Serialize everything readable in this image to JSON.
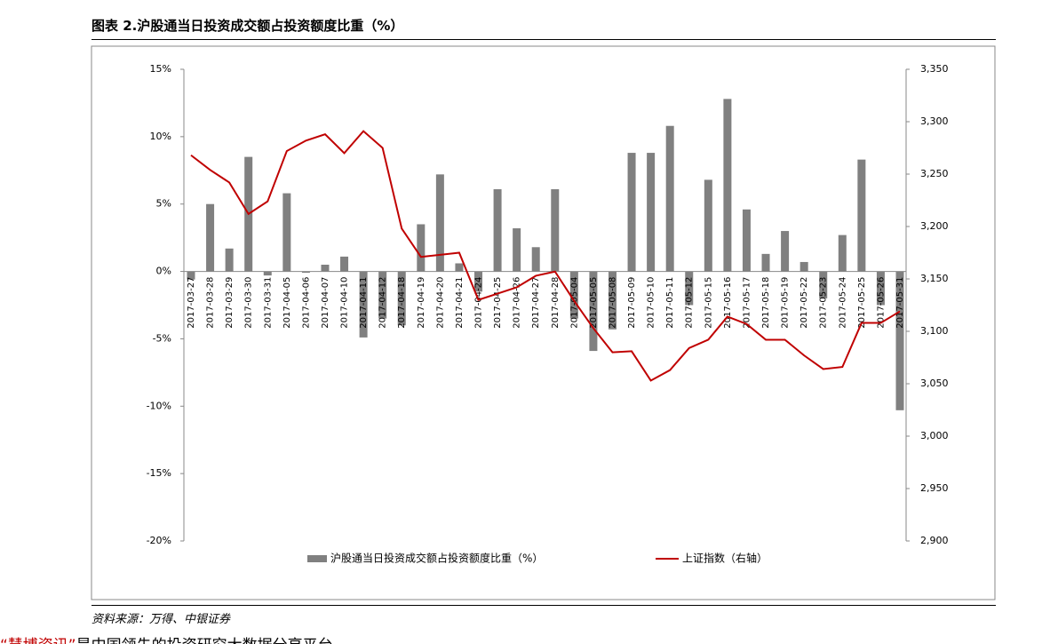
{
  "header": {
    "title": "图表 2.沪股通当日投资成交额占投资额度比重（%）"
  },
  "chart_data": {
    "type": "bar-line",
    "categories": [
      "2017-03-27",
      "2017-03-28",
      "2017-03-29",
      "2017-03-30",
      "2017-03-31",
      "2017-04-05",
      "2017-04-06",
      "2017-04-07",
      "2017-04-10",
      "2017-04-11",
      "2017-04-12",
      "2017-04-18",
      "2017-04-19",
      "2017-04-20",
      "2017-04-21",
      "2017-04-24",
      "2017-04-25",
      "2017-04-26",
      "2017-04-27",
      "2017-04-28",
      "2017-05-04",
      "2017-05-05",
      "2017-05-08",
      "2017-05-09",
      "2017-05-10",
      "2017-05-11",
      "2017-05-12",
      "2017-05-15",
      "2017-05-16",
      "2017-05-17",
      "2017-05-18",
      "2017-05-19",
      "2017-05-22",
      "2017-05-23",
      "2017-05-24",
      "2017-05-25",
      "2017-05-26",
      "2017-05-31"
    ],
    "series": [
      {
        "name": "沪股通当日投资成交额占投资额度比重（%）",
        "type": "bar",
        "color": "#808080",
        "values": [
          -0.6,
          5.0,
          1.7,
          8.5,
          -0.3,
          5.8,
          -0.1,
          0.5,
          1.1,
          -4.9,
          -3.5,
          -4.0,
          3.5,
          7.2,
          0.6,
          -1.5,
          6.1,
          3.2,
          1.8,
          6.1,
          -3.5,
          -5.9,
          -4.3,
          8.8,
          8.8,
          10.8,
          -2.5,
          6.8,
          12.8,
          4.6,
          1.3,
          3.0,
          0.7,
          -2.0,
          2.7,
          8.3,
          -2.5,
          -10.3
        ]
      },
      {
        "name": "上证指数（右轴）",
        "type": "line",
        "axis": "y2",
        "color": "#c00000",
        "values": [
          3268,
          3254,
          3242,
          3212,
          3224,
          3272,
          3282,
          3288,
          3270,
          3291,
          3275,
          3198,
          3171,
          3173,
          3175,
          3130,
          3136,
          3142,
          3153,
          3157,
          3129,
          3103,
          3080,
          3081,
          3053,
          3063,
          3084,
          3092,
          3114,
          3107,
          3092,
          3092,
          3077,
          3064,
          3066,
          3108,
          3108,
          3119
        ]
      }
    ],
    "ylim": [
      -20,
      15
    ],
    "yticks": [
      {
        "value": -20,
        "label": "-20%"
      },
      {
        "value": -15,
        "label": "-15%"
      },
      {
        "value": -10,
        "label": "-10%"
      },
      {
        "value": -5,
        "label": "-5%"
      },
      {
        "value": 0,
        "label": "0%"
      },
      {
        "value": 5,
        "label": "5%"
      },
      {
        "value": 10,
        "label": "10%"
      },
      {
        "value": 15,
        "label": "15%"
      }
    ],
    "y2lim": [
      2900,
      3350
    ],
    "y2ticks": [
      {
        "value": 2900,
        "label": "2,900"
      },
      {
        "value": 2950,
        "label": "2,950"
      },
      {
        "value": 3000,
        "label": "3,000"
      },
      {
        "value": 3050,
        "label": "3,050"
      },
      {
        "value": 3100,
        "label": "3,100"
      },
      {
        "value": 3150,
        "label": "3,150"
      },
      {
        "value": 3200,
        "label": "3,200"
      },
      {
        "value": 3250,
        "label": "3,250"
      },
      {
        "value": 3300,
        "label": "3,300"
      },
      {
        "value": 3350,
        "label": "3,350"
      }
    ]
  },
  "footer": {
    "source": "资料来源：万得、中银证券",
    "note_brand": "“慧博资讯”",
    "note_text": "是中国领先的投资研究大数据分享平台"
  }
}
